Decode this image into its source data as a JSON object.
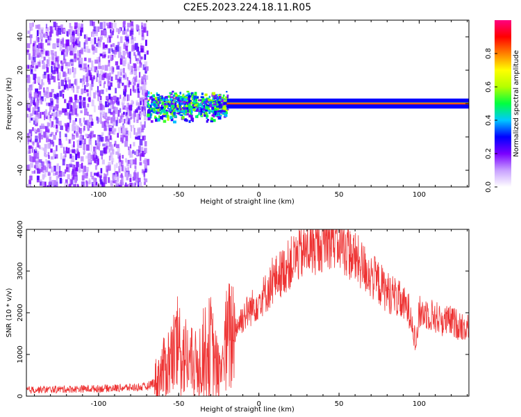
{
  "title": "C2E5.2023.224.18.11.R05",
  "chart_data": [
    {
      "type": "heatmap",
      "xlabel": "Height of straight line (km)",
      "ylabel": "Frequency (Hz)",
      "xlim": [
        -145,
        131
      ],
      "ylim": [
        -50,
        50
      ],
      "xticks": [
        -100,
        -50,
        0,
        50,
        100
      ],
      "yticks": [
        -40,
        -20,
        0,
        20,
        40
      ],
      "colorbar": {
        "label": "Normalized spectral amplitude",
        "range": [
          0,
          1
        ],
        "ticks": [
          "0.0",
          "0.2",
          "0.4",
          "0.6",
          "0.8"
        ],
        "colormap": [
          "#ffffff",
          "#c8a0ff",
          "#7a00ff",
          "#0000ff",
          "#00c8ff",
          "#00ff40",
          "#b4ff00",
          "#ffff00",
          "#ff8000",
          "#ff0000",
          "#ff0080"
        ]
      },
      "features": [
        {
          "name": "broadband noise",
          "x_range": [
            -145,
            -70
          ],
          "y_range": [
            -50,
            50
          ],
          "amplitude": 0.2
        },
        {
          "name": "spectral broadening",
          "x_range": [
            -70,
            -20
          ],
          "y_range": [
            -8,
            6
          ],
          "amplitude": 0.45
        },
        {
          "name": "narrow carrier",
          "x_range": [
            -20,
            131
          ],
          "y_range": [
            -1,
            1
          ],
          "amplitude": 0.85
        }
      ]
    },
    {
      "type": "line",
      "xlabel": "Height of straight line (km)",
      "ylabel": "SNR (10 * v/v)",
      "xlim": [
        -145,
        131
      ],
      "ylim": [
        0,
        4000
      ],
      "xticks": [
        -100,
        -50,
        0,
        50,
        100
      ],
      "yticks": [
        0,
        1000,
        2000,
        3000,
        4000
      ],
      "color": "#ee3333",
      "series": [
        {
          "x": [
            -145,
            -130,
            -115,
            -100,
            -85,
            -70,
            -65,
            -60,
            -55,
            -50,
            -45,
            -40,
            -35,
            -30,
            -25,
            -20,
            -15,
            -10,
            -5,
            0,
            5,
            10,
            15,
            20,
            25,
            30,
            35,
            40,
            45,
            50,
            55,
            60,
            65,
            70,
            75,
            80,
            85,
            90,
            95,
            98,
            100,
            105,
            110,
            115,
            120,
            125,
            131
          ],
          "y": [
            150,
            160,
            170,
            180,
            200,
            220,
            350,
            600,
            900,
            1200,
            900,
            700,
            1000,
            1200,
            500,
            1300,
            1600,
            1900,
            2100,
            2300,
            2500,
            2800,
            3000,
            3200,
            3400,
            3500,
            3600,
            3700,
            3800,
            3700,
            3500,
            3300,
            3100,
            2900,
            2700,
            2500,
            2400,
            2200,
            2000,
            1200,
            2000,
            2000,
            1900,
            1800,
            1800,
            1700,
            1650
          ]
        }
      ]
    }
  ]
}
